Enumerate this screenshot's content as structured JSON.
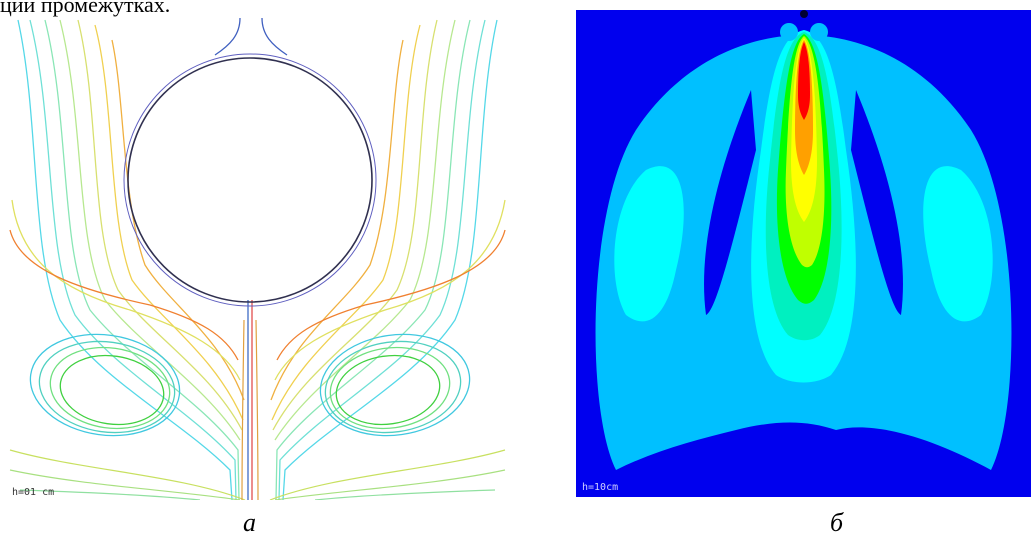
{
  "header_fragment": "ции промежутках.",
  "panel_a": {
    "label": "h=01 cm",
    "caption": "а"
  },
  "panel_b": {
    "label": "h=10cm",
    "caption": "б"
  },
  "colors": {
    "background_dark": "#0000ee",
    "field_light": "#00c0ff",
    "cyan": "#00ffff",
    "teal": "#00f0c0",
    "green": "#00ff00",
    "yellowgreen": "#c0ff00",
    "yellow": "#ffff00",
    "orange": "#ffa000",
    "red": "#ff0000"
  }
}
